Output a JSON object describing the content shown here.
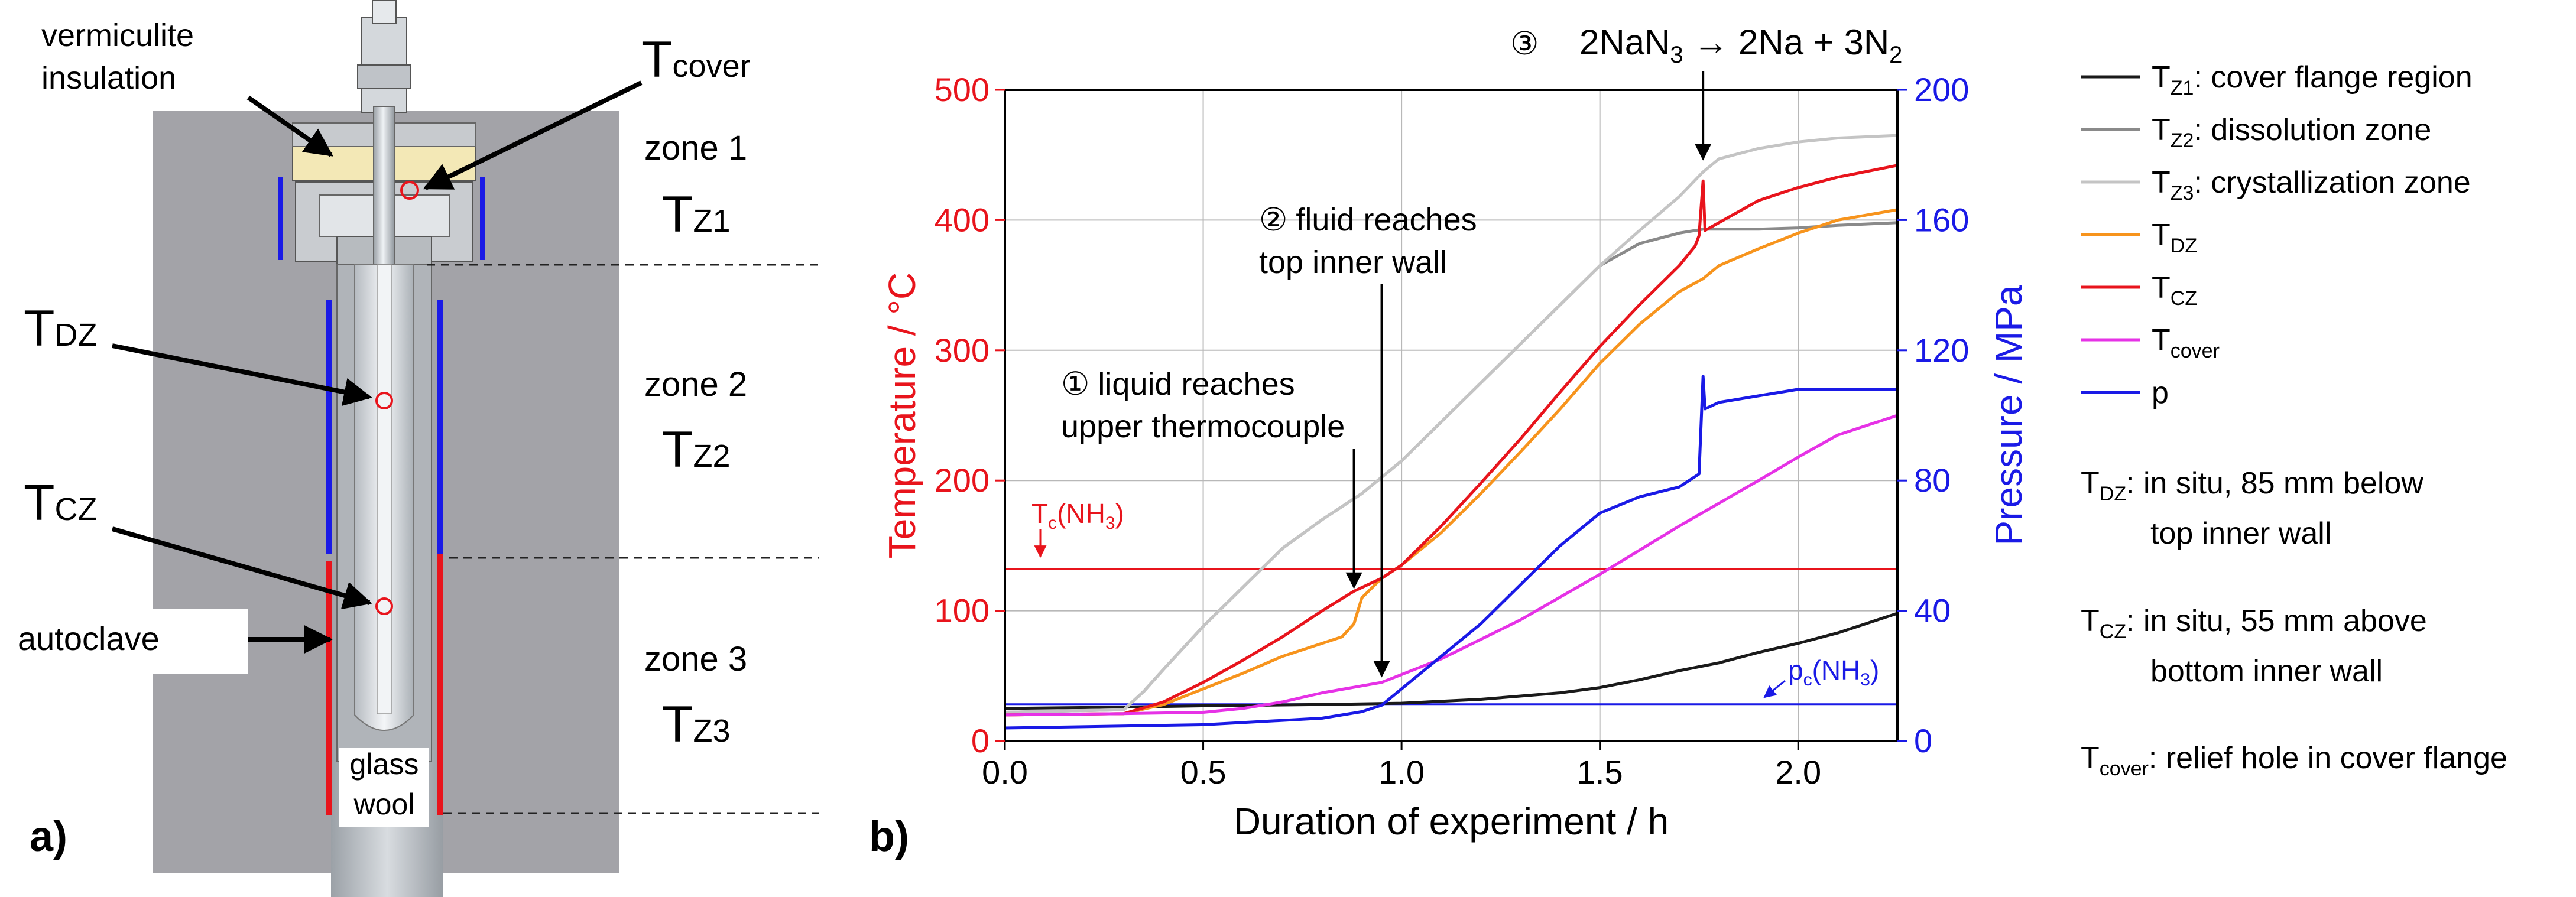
{
  "panel_a": {
    "panel_label": "a)",
    "labels": {
      "vermiculite_line1": "vermiculite",
      "vermiculite_line2": "insulation",
      "autoclave": "autoclave",
      "glass_wool_line1": "glass",
      "glass_wool_line2": "wool"
    },
    "sensors": [
      {
        "main": "T",
        "sub": "cover"
      },
      {
        "main": "T",
        "sub": "DZ"
      },
      {
        "main": "T",
        "sub": "CZ"
      }
    ],
    "zones": [
      {
        "label": "zone 1",
        "temp_main": "T",
        "temp_sub": "Z1"
      },
      {
        "label": "zone 2",
        "temp_main": "T",
        "temp_sub": "Z2"
      },
      {
        "label": "zone 3",
        "temp_main": "T",
        "temp_sub": "Z3"
      }
    ]
  },
  "panel_b": {
    "panel_label": "b)",
    "annotations": {
      "a1_symbol": "①",
      "a1_line1": "liquid reaches",
      "a1_line2": "upper thermocouple",
      "a2_symbol": "②",
      "a2_line1": "fluid reaches",
      "a2_line2": "top inner wall",
      "a3_symbol": "③",
      "a3_pre": "2NaN",
      "a3_sub1": "3",
      "a3_mid": " → 2Na + 3N",
      "a3_sub2": "2",
      "tc_main": "T",
      "tc_sub": "c",
      "tc_rest": "(NH",
      "tc_sub2": "3",
      "tc_end": ")",
      "pc_main": "p",
      "pc_sub": "c",
      "pc_rest": "(NH",
      "pc_sub2": "3",
      "pc_end": ")"
    },
    "legend_notes": [
      {
        "main": "T",
        "sub": "DZ",
        "line1": ": in situ, 85 mm below",
        "line2": "top inner wall"
      },
      {
        "main": "T",
        "sub": "CZ",
        "line1": ": in situ, 55 mm above",
        "line2": "bottom inner wall"
      },
      {
        "main": "T",
        "sub": "cover",
        "line1": ": relief hole in cover flange",
        "line2": ""
      }
    ]
  },
  "chart_data": {
    "type": "line",
    "title": "",
    "xlabel": "Duration of experiment / h",
    "ylabel": "Temperature / °C",
    "y2label": "Pressure / MPa",
    "xlim": [
      0.0,
      2.25
    ],
    "ylim": [
      0,
      500
    ],
    "y2lim": [
      0,
      200
    ],
    "xticks": [
      "0.0",
      "0.5",
      "1.0",
      "1.5",
      "2.0"
    ],
    "yticks": [
      "0",
      "100",
      "200",
      "300",
      "400",
      "500"
    ],
    "y2ticks": [
      "0",
      "40",
      "80",
      "120",
      "160",
      "200"
    ],
    "grid": true,
    "legend_position": "right, outside plot",
    "colors": {
      "left_axis": "#e8141c",
      "right_axis": "#1a1ae6"
    },
    "series": [
      {
        "name": "T_Z1: cover flange region",
        "legend_main": "T",
        "legend_sub": "Z1",
        "legend_text": ": cover flange region",
        "axis": "left",
        "color": "#1a1a1a",
        "points": [
          [
            0,
            25
          ],
          [
            0.3,
            26
          ],
          [
            0.5,
            27
          ],
          [
            0.8,
            28
          ],
          [
            1.0,
            29
          ],
          [
            1.2,
            32
          ],
          [
            1.4,
            37
          ],
          [
            1.5,
            41
          ],
          [
            1.6,
            47
          ],
          [
            1.7,
            54
          ],
          [
            1.8,
            60
          ],
          [
            1.9,
            68
          ],
          [
            2.0,
            75
          ],
          [
            2.1,
            83
          ],
          [
            2.2,
            93
          ],
          [
            2.25,
            98
          ]
        ]
      },
      {
        "name": "T_Z2: dissolution zone",
        "legend_main": "T",
        "legend_sub": "Z2",
        "legend_text": ": dissolution zone",
        "axis": "left",
        "color": "#8a8a8a",
        "points": [
          [
            0,
            22
          ],
          [
            0.3,
            24
          ],
          [
            0.35,
            38
          ],
          [
            0.4,
            55
          ],
          [
            0.5,
            88
          ],
          [
            0.6,
            118
          ],
          [
            0.7,
            148
          ],
          [
            0.8,
            170
          ],
          [
            0.9,
            190
          ],
          [
            1.0,
            215
          ],
          [
            1.1,
            245
          ],
          [
            1.2,
            275
          ],
          [
            1.3,
            305
          ],
          [
            1.4,
            335
          ],
          [
            1.5,
            365
          ],
          [
            1.6,
            382
          ],
          [
            1.7,
            390
          ],
          [
            1.76,
            393
          ],
          [
            1.8,
            393
          ],
          [
            1.9,
            393
          ],
          [
            2.0,
            394
          ],
          [
            2.1,
            396
          ],
          [
            2.25,
            398
          ]
        ]
      },
      {
        "name": "T_Z3: crystallization zone",
        "legend_main": "T",
        "legend_sub": "Z3",
        "legend_text": ": crystallization zone",
        "axis": "left",
        "color": "#c4c4c4",
        "points": [
          [
            0,
            22
          ],
          [
            0.3,
            24
          ],
          [
            0.35,
            38
          ],
          [
            0.4,
            55
          ],
          [
            0.5,
            88
          ],
          [
            0.6,
            118
          ],
          [
            0.7,
            148
          ],
          [
            0.8,
            170
          ],
          [
            0.9,
            190
          ],
          [
            1.0,
            215
          ],
          [
            1.1,
            245
          ],
          [
            1.2,
            275
          ],
          [
            1.3,
            305
          ],
          [
            1.4,
            335
          ],
          [
            1.5,
            365
          ],
          [
            1.6,
            392
          ],
          [
            1.7,
            418
          ],
          [
            1.76,
            437
          ],
          [
            1.8,
            447
          ],
          [
            1.9,
            455
          ],
          [
            2.0,
            460
          ],
          [
            2.1,
            463
          ],
          [
            2.25,
            465
          ]
        ]
      },
      {
        "name": "T_DZ",
        "legend_main": "T",
        "legend_sub": "DZ",
        "legend_text": "",
        "axis": "left",
        "color": "#f7941d",
        "points": [
          [
            0,
            20
          ],
          [
            0.3,
            21
          ],
          [
            0.4,
            28
          ],
          [
            0.5,
            40
          ],
          [
            0.6,
            52
          ],
          [
            0.7,
            65
          ],
          [
            0.8,
            75
          ],
          [
            0.85,
            80
          ],
          [
            0.88,
            90
          ],
          [
            0.9,
            110
          ],
          [
            0.95,
            125
          ],
          [
            1.0,
            135
          ],
          [
            1.1,
            160
          ],
          [
            1.2,
            190
          ],
          [
            1.3,
            222
          ],
          [
            1.4,
            255
          ],
          [
            1.5,
            290
          ],
          [
            1.6,
            320
          ],
          [
            1.7,
            345
          ],
          [
            1.76,
            355
          ],
          [
            1.8,
            365
          ],
          [
            1.9,
            378
          ],
          [
            2.0,
            390
          ],
          [
            2.1,
            400
          ],
          [
            2.25,
            408
          ]
        ]
      },
      {
        "name": "T_CZ",
        "legend_main": "T",
        "legend_sub": "CZ",
        "legend_text": "",
        "axis": "left",
        "color": "#e8141c",
        "points": [
          [
            0,
            20
          ],
          [
            0.3,
            21
          ],
          [
            0.4,
            30
          ],
          [
            0.5,
            45
          ],
          [
            0.6,
            62
          ],
          [
            0.7,
            80
          ],
          [
            0.8,
            100
          ],
          [
            0.88,
            115
          ],
          [
            0.95,
            125
          ],
          [
            1.0,
            135
          ],
          [
            1.1,
            165
          ],
          [
            1.2,
            198
          ],
          [
            1.3,
            232
          ],
          [
            1.4,
            268
          ],
          [
            1.5,
            303
          ],
          [
            1.6,
            335
          ],
          [
            1.7,
            365
          ],
          [
            1.74,
            380
          ],
          [
            1.75,
            388
          ],
          [
            1.76,
            430
          ],
          [
            1.765,
            392
          ],
          [
            1.8,
            398
          ],
          [
            1.9,
            415
          ],
          [
            2.0,
            425
          ],
          [
            2.1,
            433
          ],
          [
            2.25,
            442
          ]
        ]
      },
      {
        "name": "T_cover",
        "legend_main": "T",
        "legend_sub": "cover",
        "legend_text": "",
        "axis": "left",
        "color": "#e632e6",
        "points": [
          [
            0,
            20
          ],
          [
            0.3,
            21
          ],
          [
            0.5,
            22
          ],
          [
            0.6,
            25
          ],
          [
            0.7,
            30
          ],
          [
            0.8,
            37
          ],
          [
            0.95,
            45
          ],
          [
            1.1,
            63
          ],
          [
            1.3,
            93
          ],
          [
            1.5,
            128
          ],
          [
            1.7,
            165
          ],
          [
            1.9,
            200
          ],
          [
            2.0,
            218
          ],
          [
            2.1,
            235
          ],
          [
            2.25,
            250
          ]
        ]
      },
      {
        "name": "p",
        "legend_main": "p",
        "legend_sub": "",
        "legend_text": "",
        "axis": "right",
        "color": "#1a1ae6",
        "points": [
          [
            0,
            4
          ],
          [
            0.5,
            5
          ],
          [
            0.8,
            7
          ],
          [
            0.9,
            9
          ],
          [
            0.95,
            11
          ],
          [
            1.0,
            16
          ],
          [
            1.1,
            26
          ],
          [
            1.2,
            36
          ],
          [
            1.3,
            48
          ],
          [
            1.4,
            60
          ],
          [
            1.5,
            70
          ],
          [
            1.6,
            75
          ],
          [
            1.7,
            78
          ],
          [
            1.75,
            82
          ],
          [
            1.76,
            112
          ],
          [
            1.765,
            102
          ],
          [
            1.8,
            104
          ],
          [
            1.9,
            106
          ],
          [
            2.0,
            108
          ],
          [
            2.25,
            108
          ]
        ]
      },
      {
        "name": "T_c(NH3)",
        "axis": "left",
        "color": "#e8141c",
        "reference": true,
        "points": [
          [
            0,
            132
          ],
          [
            2.25,
            132
          ]
        ]
      },
      {
        "name": "p_c(NH3)",
        "axis": "right",
        "color": "#1a1ae6",
        "reference": true,
        "points": [
          [
            0,
            11.3
          ],
          [
            2.25,
            11.3
          ]
        ]
      }
    ],
    "event_x": [
      0.88,
      0.95,
      1.76
    ]
  }
}
